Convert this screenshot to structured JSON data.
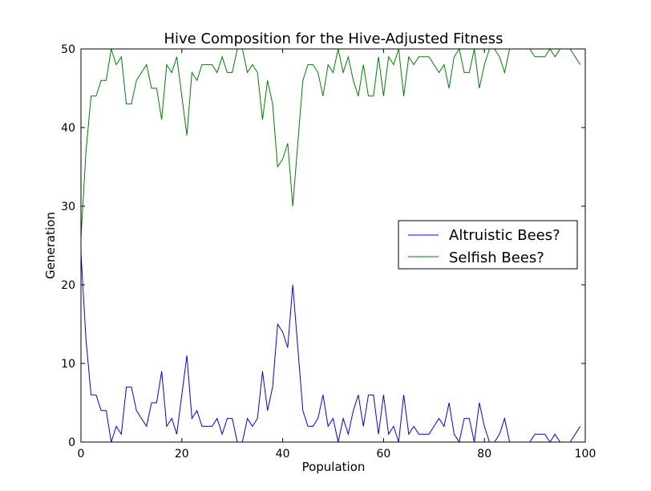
{
  "chart_data": {
    "type": "line",
    "title": "Hive Composition for the Hive-Adjusted Fitness",
    "xlabel": "Population",
    "ylabel": "Generation",
    "xlim": [
      0,
      100
    ],
    "ylim": [
      0,
      50
    ],
    "xticks": [
      0,
      20,
      40,
      60,
      80,
      100
    ],
    "yticks": [
      0,
      10,
      20,
      30,
      40,
      50
    ],
    "grid": false,
    "legend_position": "center-right",
    "x": [
      0,
      1,
      2,
      3,
      4,
      5,
      6,
      7,
      8,
      9,
      10,
      11,
      12,
      13,
      14,
      15,
      16,
      17,
      18,
      19,
      20,
      21,
      22,
      23,
      24,
      25,
      26,
      27,
      28,
      29,
      30,
      31,
      32,
      33,
      34,
      35,
      36,
      37,
      38,
      39,
      40,
      41,
      42,
      43,
      44,
      45,
      46,
      47,
      48,
      49,
      50,
      51,
      52,
      53,
      54,
      55,
      56,
      57,
      58,
      59,
      60,
      61,
      62,
      63,
      64,
      65,
      66,
      67,
      68,
      69,
      70,
      71,
      72,
      73,
      74,
      75,
      76,
      77,
      78,
      79,
      80,
      81,
      82,
      83,
      84,
      85,
      86,
      87,
      88,
      89,
      90,
      91,
      92,
      93,
      94,
      95,
      96,
      97,
      98,
      99
    ],
    "series": [
      {
        "name": "Altruistic Bees?",
        "color": "#0000ff",
        "values": [
          24,
          13,
          6,
          6,
          4,
          4,
          0,
          2,
          1,
          7,
          7,
          4,
          3,
          2,
          5,
          5,
          9,
          2,
          3,
          1,
          6,
          11,
          3,
          4,
          2,
          2,
          2,
          3,
          1,
          3,
          3,
          0,
          0,
          3,
          2,
          3,
          9,
          4,
          7,
          15,
          14,
          12,
          20,
          12,
          4,
          2,
          2,
          3,
          6,
          2,
          3,
          0,
          3,
          1,
          4,
          6,
          2,
          6,
          6,
          1,
          6,
          1,
          2,
          0,
          6,
          1,
          2,
          1,
          1,
          1,
          2,
          3,
          2,
          5,
          1,
          0,
          3,
          3,
          0,
          5,
          2,
          0,
          0,
          1,
          3,
          0,
          0,
          0,
          0,
          0,
          1,
          1,
          1,
          0,
          1,
          0,
          0,
          0,
          1,
          2
        ]
      },
      {
        "name": "Selfish Bees?",
        "color": "#008000",
        "values": [
          26,
          37,
          44,
          44,
          46,
          46,
          50,
          48,
          49,
          43,
          43,
          46,
          47,
          48,
          45,
          45,
          41,
          48,
          47,
          49,
          44,
          39,
          47,
          46,
          48,
          48,
          48,
          47,
          49,
          47,
          47,
          50,
          50,
          47,
          48,
          47,
          41,
          46,
          43,
          35,
          36,
          38,
          30,
          38,
          46,
          48,
          48,
          47,
          44,
          48,
          47,
          50,
          47,
          49,
          46,
          44,
          48,
          44,
          44,
          49,
          44,
          49,
          48,
          50,
          44,
          49,
          48,
          49,
          49,
          49,
          48,
          47,
          48,
          45,
          49,
          50,
          47,
          47,
          50,
          45,
          48,
          50,
          50,
          49,
          47,
          50,
          50,
          50,
          50,
          50,
          49,
          49,
          49,
          50,
          49,
          50,
          50,
          50,
          49,
          48
        ]
      }
    ]
  }
}
